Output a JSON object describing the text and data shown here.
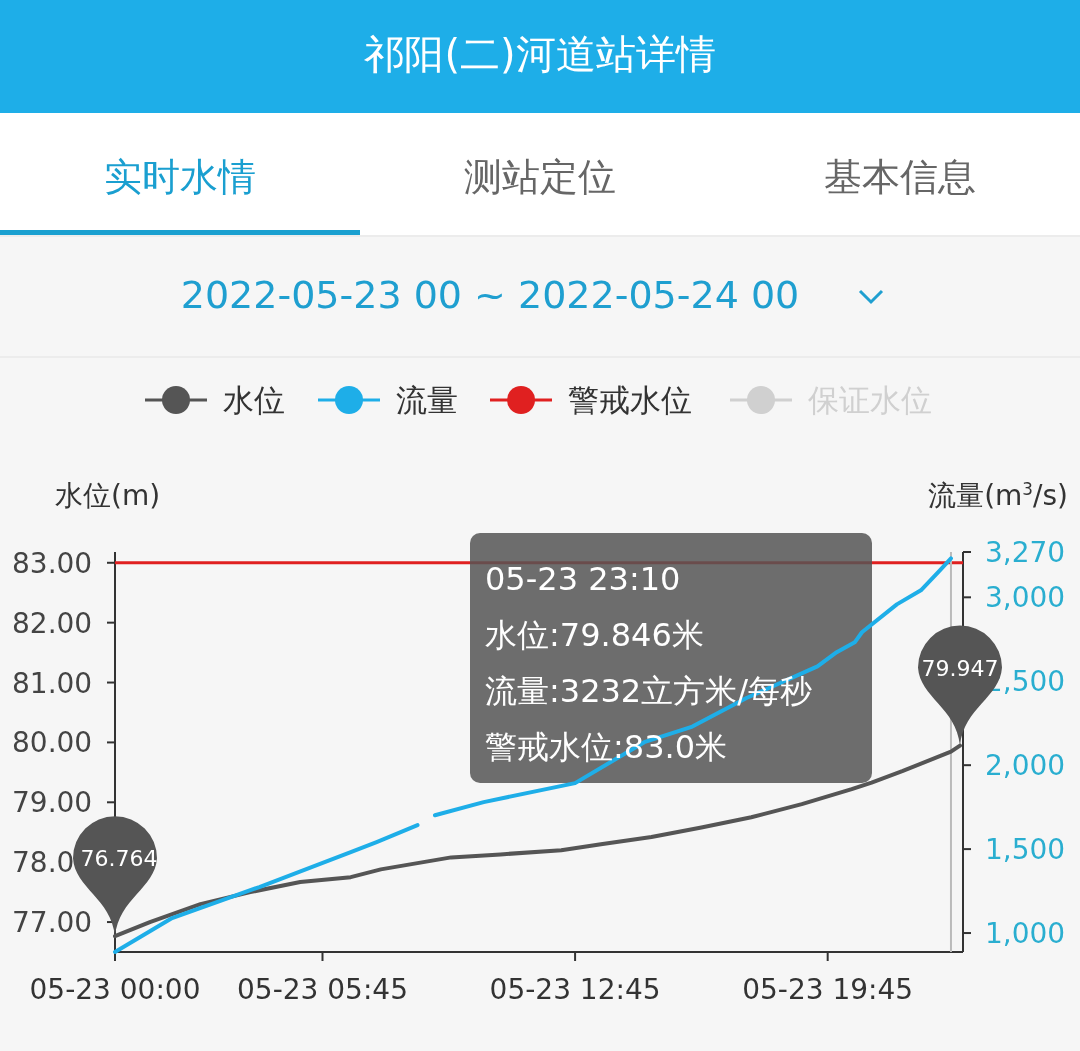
{
  "chart_data": {
    "type": "line",
    "title": "祁阳(二)河道站详情",
    "subtitle": "2022-05-23 00 ~ 2022-05-24 00",
    "ylabel": "水位(m)",
    "y2label": "流量(m$^{3}$/s)",
    "xlim": [
      "2022-05-23T00:00",
      "2022-05-23T23:30"
    ],
    "xticks": [
      {
        "value": "2022-05-23T00:00",
        "label": "05-23 00:00"
      },
      {
        "value": "2022-05-23T05:45",
        "label": "05-23 05:45"
      },
      {
        "value": "2022-05-23T12:45",
        "label": "05-23 12:45"
      },
      {
        "value": "2022-05-23T19:45",
        "label": "05-23 19:45"
      }
    ],
    "ylim": [
      76.5,
      83.18
    ],
    "yticks": [
      {
        "value": 77,
        "label": "77.00"
      },
      {
        "value": 78,
        "label": "78.0"
      },
      {
        "value": 79,
        "label": "79.00"
      },
      {
        "value": 80,
        "label": "80.00"
      },
      {
        "value": 81,
        "label": "81.00"
      },
      {
        "value": 82,
        "label": "82.00"
      },
      {
        "value": 83,
        "label": "83.00"
      }
    ],
    "y2lim": [
      887,
      3270
    ],
    "y2ticks": [
      {
        "value": 1000,
        "label": "1,000"
      },
      {
        "value": 1500,
        "label": "1,500"
      },
      {
        "value": 2000,
        "label": "2,000"
      },
      {
        "value": 2500,
        "label": "2,500"
      },
      {
        "value": 3000,
        "label": "3,000"
      },
      {
        "value": 3270,
        "label": "3,270"
      }
    ],
    "legend": "top",
    "marker": "none",
    "line_style": "solid",
    "series": [
      {
        "name": "水位",
        "color": "#555555",
        "x": [
          "2022-05-23T00:00",
          "2022-05-23T00:58",
          "2022-05-23T02:22",
          "2022-05-23T03:45",
          "2022-05-23T05:08",
          "2022-05-23T06:32",
          "2022-05-23T07:22",
          "2022-05-23T09:19",
          "2022-05-23T10:41",
          "2022-05-23T12:22",
          "2022-05-23T13:28",
          "2022-05-23T14:52",
          "2022-05-23T16:15",
          "2022-05-23T17:38",
          "2022-05-23T19:02",
          "2022-05-23T20:25",
          "2022-05-23T20:58",
          "2022-05-23T21:49",
          "2022-05-23T23:10",
          "2022-05-23T23:25"
        ],
        "values": [
          76.764,
          77.0,
          77.3,
          77.5,
          77.67,
          77.75,
          77.88,
          78.08,
          78.13,
          78.2,
          78.3,
          78.42,
          78.58,
          78.75,
          78.97,
          79.22,
          79.33,
          79.52,
          79.846,
          79.947
        ]
      },
      {
        "name": "流量",
        "color": "#1eaee8",
        "axis": "y2",
        "x": [
          "2022-05-23T00:00",
          "2022-05-23T01:35",
          "2022-05-23T04:00",
          "2022-05-23T06:32",
          "2022-05-23T07:15",
          "2022-05-23T08:23",
          "2022-05-23T08:36",
          "2022-05-23T08:52",
          "2022-05-23T10:13",
          "2022-05-23T12:45",
          "2022-05-23T14:40",
          "2022-05-23T16:00",
          "2022-05-23T17:30",
          "2022-05-23T19:28",
          "2022-05-23T20:00",
          "2022-05-23T20:30",
          "2022-05-23T20:42",
          "2022-05-23T21:40",
          "2022-05-23T22:20",
          "2022-05-23T22:50",
          "2022-05-23T23:10"
        ],
        "values": [
          887,
          1089,
          1274,
          1482,
          1542,
          1643,
          null,
          1702,
          1780,
          1893,
          2137,
          2230,
          2400,
          2589,
          2673,
          2732,
          2792,
          2958,
          3042,
          3155,
          3232
        ]
      },
      {
        "name": "保证水位",
        "color": "#cccccc"
      }
    ],
    "ref_lines": [
      {
        "axis": "y",
        "value": 83,
        "label": "警戒水位",
        "color": "#e02020"
      },
      {
        "axis": "x",
        "value": "2022-05-23T23:10",
        "color": "#bbbbbb"
      }
    ],
    "annotations": [
      "实时水情",
      "测站定位",
      "基本信息",
      "05-23 23:10",
      "水位:79.846米",
      "流量:3232立方米/每秒",
      "警戒水位:83.0米",
      {
        "text": "76.764",
        "x": "2022-05-23T00:00",
        "y": 76.764
      },
      {
        "text": "79.947",
        "x": "2022-05-23T23:25",
        "y": 79.947
      }
    ]
  }
}
